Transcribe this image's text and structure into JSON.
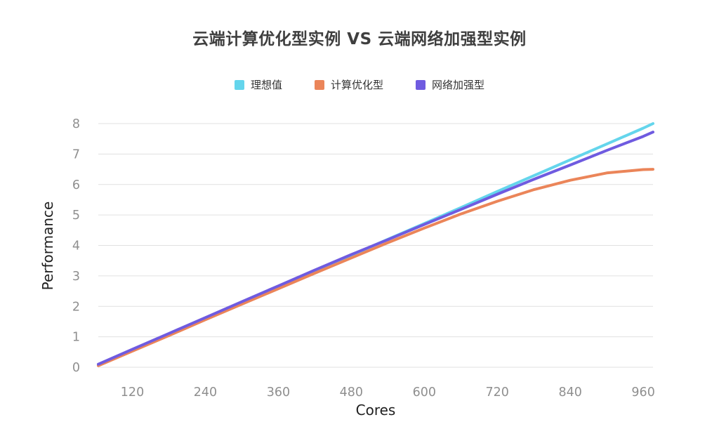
{
  "title": "云端计算优化型实例 VS 云端网络加强型实例",
  "chart_data": {
    "type": "line",
    "title": "云端计算优化型实例 VS 云端网络加强型实例",
    "xlabel": "Cores",
    "ylabel": "Performance",
    "legend_position": "top",
    "grid": "horizontal",
    "background_color": "#ffffff",
    "grid_color": "#e0e0e0",
    "tick_label_color": "#8f8f8f",
    "axis_title_color": "#1f1f1f",
    "title_color": "#3f3f3f",
    "xlim": [
      64,
      976
    ],
    "ylim": [
      0,
      8
    ],
    "x_ticks": [
      120,
      240,
      360,
      480,
      600,
      720,
      840,
      960
    ],
    "y_ticks": [
      0,
      1,
      2,
      3,
      4,
      5,
      6,
      7,
      8
    ],
    "x": [
      64,
      120,
      180,
      240,
      300,
      360,
      420,
      480,
      540,
      600,
      660,
      720,
      780,
      840,
      900,
      960,
      976
    ],
    "series": [
      {
        "name": "理想值",
        "color": "#64D5EC",
        "values": [
          0.06,
          0.55,
          1.07,
          1.59,
          2.11,
          2.63,
          3.16,
          3.68,
          4.2,
          4.72,
          5.24,
          5.77,
          6.29,
          6.81,
          7.33,
          7.85,
          8.0
        ]
      },
      {
        "name": "计算优化型",
        "color": "#EB8559",
        "values": [
          0.05,
          0.53,
          1.04,
          1.56,
          2.07,
          2.58,
          3.09,
          3.59,
          4.09,
          4.57,
          5.03,
          5.45,
          5.83,
          6.14,
          6.38,
          6.49,
          6.5
        ]
      },
      {
        "name": "网络加强型",
        "color": "#6F5BE0",
        "values": [
          0.1,
          0.59,
          1.11,
          1.63,
          2.15,
          2.67,
          3.19,
          3.7,
          4.19,
          4.69,
          5.18,
          5.68,
          6.17,
          6.64,
          7.12,
          7.58,
          7.72
        ]
      }
    ]
  }
}
